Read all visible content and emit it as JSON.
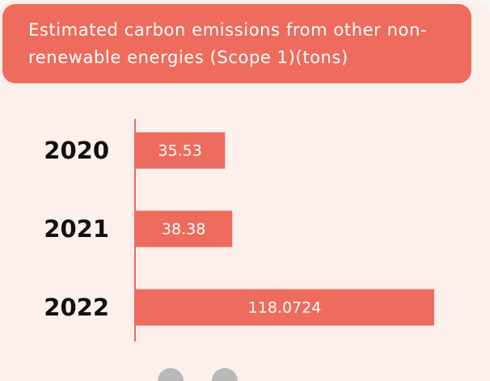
{
  "chart_data": {
    "type": "bar",
    "orientation": "horizontal",
    "title": "Estimated carbon emissions from other non-renewable energies (Scope 1)(tons)",
    "categories": [
      "2020",
      "2021",
      "2022"
    ],
    "values": [
      35.53,
      38.38,
      118.0724
    ],
    "color": "#ee6c5d"
  }
}
